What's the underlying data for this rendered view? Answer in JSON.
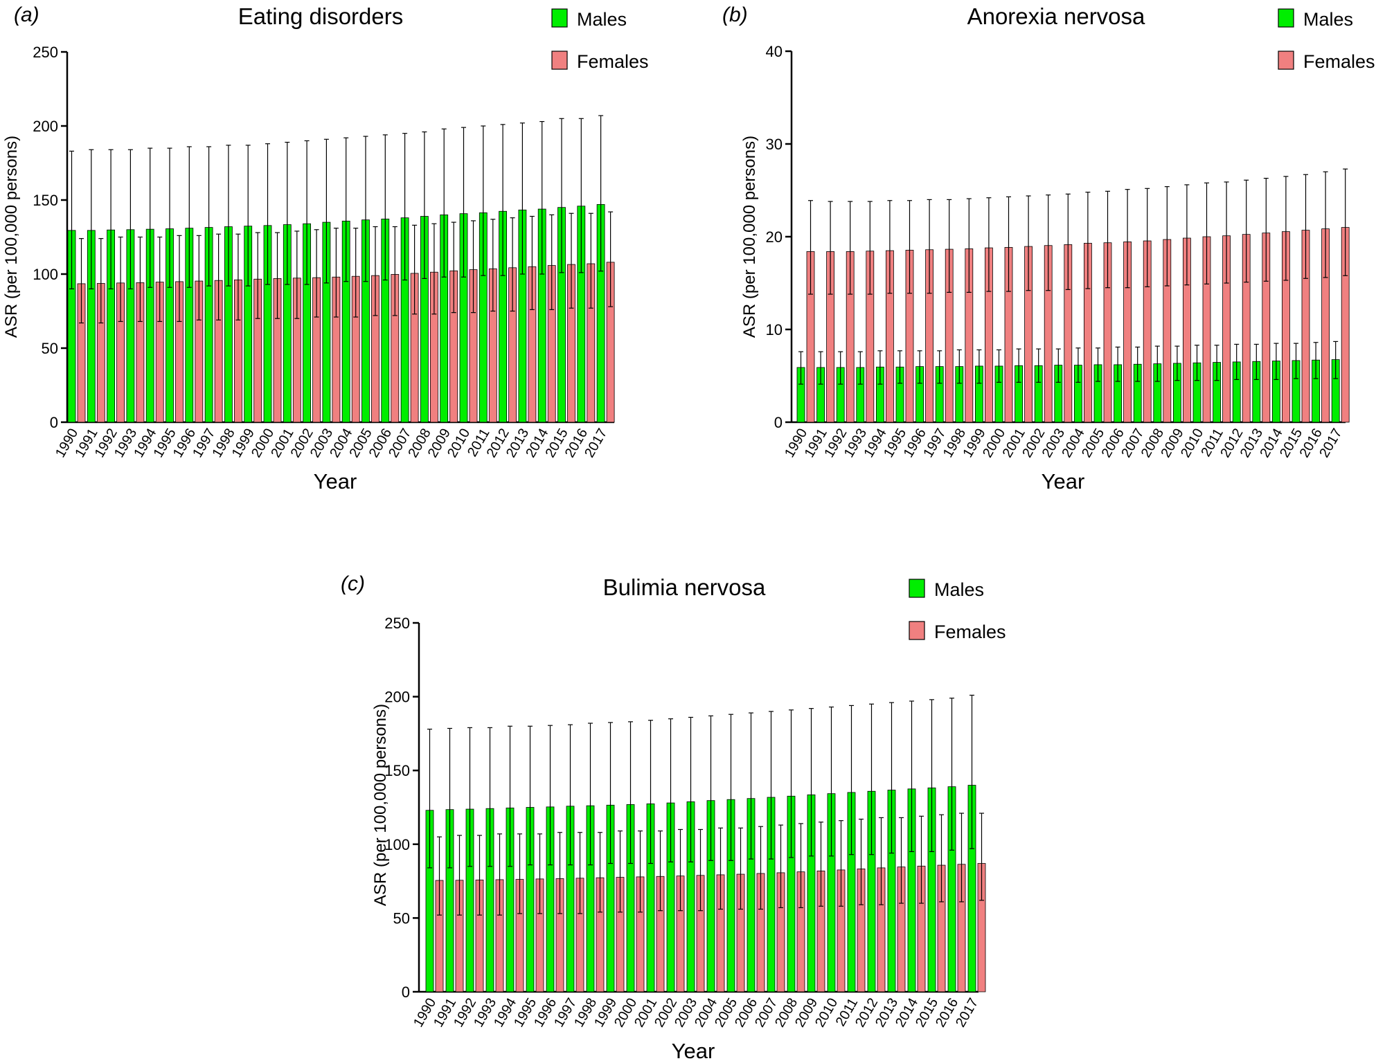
{
  "figure": {
    "panels": [
      {
        "label": "(a)",
        "title": "Eating disorders"
      },
      {
        "label": "(b)",
        "title": "Anorexia nervosa"
      },
      {
        "label": "(c)",
        "title": "Bulimia nervosa"
      }
    ]
  },
  "colors": {
    "males": "#00ee00",
    "females": "#f08080",
    "axis": "#000000"
  },
  "chart_data": [
    {
      "type": "bar",
      "title": "Eating disorders",
      "panel_label": "(a)",
      "xlabel": "Year",
      "ylabel": "ASR (per 100,000  persons)",
      "ylim": [
        0,
        250
      ],
      "yticks": [
        0,
        50,
        100,
        150,
        200,
        250
      ],
      "grid": false,
      "legend_placement": "top-right",
      "categories": [
        "1990",
        "1991",
        "1992",
        "1993",
        "1994",
        "1995",
        "1996",
        "1997",
        "1998",
        "1999",
        "2000",
        "2001",
        "2002",
        "2003",
        "2004",
        "2005",
        "2006",
        "2007",
        "2008",
        "2009",
        "2010",
        "2011",
        "2012",
        "2013",
        "2014",
        "2015",
        "2016",
        "2017"
      ],
      "series": [
        {
          "name": "Males",
          "values": [
            129.5,
            129.5,
            129.8,
            130.0,
            130.3,
            130.6,
            131.0,
            131.5,
            132.0,
            132.4,
            132.8,
            133.4,
            134.0,
            135.0,
            135.8,
            136.6,
            137.2,
            138.0,
            139.0,
            140.0,
            140.8,
            141.4,
            142.4,
            143.3,
            143.9,
            145.0,
            145.9,
            147.0
          ],
          "err_low": [
            90,
            90,
            90,
            90,
            91,
            91,
            91,
            92,
            92,
            92,
            93,
            93,
            93,
            94,
            95,
            95,
            96,
            96,
            97,
            98,
            98,
            99,
            99,
            100,
            100,
            101,
            101,
            102
          ],
          "err_high": [
            183,
            184,
            184,
            184,
            185,
            185,
            186,
            186,
            187,
            187,
            188,
            189,
            190,
            191,
            192,
            193,
            194,
            195,
            196,
            198,
            199,
            200,
            201,
            202,
            203,
            205,
            205,
            207
          ]
        },
        {
          "name": "Females",
          "values": [
            93.5,
            93.7,
            94.0,
            94.2,
            94.6,
            94.9,
            95.3,
            95.7,
            96.1,
            96.6,
            97.0,
            97.3,
            97.6,
            98.0,
            98.5,
            99.0,
            99.8,
            100.5,
            101.3,
            102.2,
            103.0,
            103.6,
            104.3,
            105.0,
            105.8,
            106.5,
            107.0,
            108.0
          ],
          "err_low": [
            67,
            67,
            68,
            68,
            68,
            68,
            69,
            69,
            69,
            70,
            70,
            70,
            71,
            71,
            71,
            72,
            72,
            73,
            73,
            74,
            74,
            75,
            75,
            76,
            76,
            77,
            77,
            78
          ],
          "err_high": [
            124,
            124,
            125,
            125,
            125,
            126,
            126,
            127,
            127,
            128,
            128,
            129,
            130,
            131,
            131,
            132,
            132,
            133,
            134,
            135,
            136,
            137,
            138,
            139,
            140,
            141,
            141,
            142
          ]
        }
      ]
    },
    {
      "type": "bar",
      "title": "Anorexia nervosa",
      "panel_label": "(b)",
      "xlabel": "Year",
      "ylabel": "ASR (per 100,000  persons)",
      "ylim": [
        0,
        40
      ],
      "yticks": [
        0,
        10,
        20,
        30,
        40
      ],
      "grid": false,
      "legend_placement": "top-right",
      "categories": [
        "1990",
        "1991",
        "1992",
        "1993",
        "1994",
        "1995",
        "1996",
        "1997",
        "1998",
        "1999",
        "2000",
        "2001",
        "2002",
        "2003",
        "2004",
        "2005",
        "2006",
        "2007",
        "2008",
        "2009",
        "2010",
        "2011",
        "2012",
        "2013",
        "2014",
        "2015",
        "2016",
        "2017"
      ],
      "series": [
        {
          "name": "Males",
          "values": [
            5.9,
            5.9,
            5.9,
            5.9,
            5.95,
            5.95,
            6.0,
            6.0,
            6.0,
            6.05,
            6.05,
            6.1,
            6.1,
            6.15,
            6.15,
            6.2,
            6.2,
            6.25,
            6.3,
            6.35,
            6.4,
            6.45,
            6.5,
            6.55,
            6.6,
            6.65,
            6.7,
            6.75
          ],
          "err_low": [
            4.1,
            4.1,
            4.1,
            4.1,
            4.1,
            4.2,
            4.2,
            4.2,
            4.2,
            4.2,
            4.3,
            4.3,
            4.3,
            4.3,
            4.3,
            4.4,
            4.4,
            4.4,
            4.4,
            4.5,
            4.5,
            4.5,
            4.6,
            4.6,
            4.6,
            4.7,
            4.7,
            4.7
          ],
          "err_high": [
            7.6,
            7.6,
            7.6,
            7.6,
            7.7,
            7.7,
            7.7,
            7.7,
            7.8,
            7.8,
            7.8,
            7.9,
            7.9,
            7.9,
            8.0,
            8.0,
            8.1,
            8.1,
            8.2,
            8.2,
            8.3,
            8.3,
            8.4,
            8.4,
            8.5,
            8.5,
            8.6,
            8.7
          ]
        },
        {
          "name": "Females",
          "values": [
            18.4,
            18.4,
            18.4,
            18.45,
            18.5,
            18.55,
            18.6,
            18.65,
            18.7,
            18.8,
            18.85,
            18.95,
            19.05,
            19.15,
            19.3,
            19.35,
            19.45,
            19.55,
            19.7,
            19.85,
            20.0,
            20.1,
            20.25,
            20.4,
            20.55,
            20.7,
            20.85,
            21.0
          ],
          "err_low": [
            13.8,
            13.8,
            13.8,
            13.8,
            13.9,
            13.9,
            13.9,
            14.0,
            14.0,
            14.1,
            14.1,
            14.2,
            14.2,
            14.3,
            14.4,
            14.5,
            14.5,
            14.6,
            14.7,
            14.8,
            14.9,
            15.0,
            15.1,
            15.2,
            15.3,
            15.5,
            15.6,
            15.8
          ],
          "err_high": [
            23.9,
            23.8,
            23.8,
            23.8,
            23.9,
            23.9,
            24.0,
            24.0,
            24.1,
            24.2,
            24.3,
            24.4,
            24.5,
            24.6,
            24.8,
            24.9,
            25.1,
            25.2,
            25.4,
            25.6,
            25.8,
            25.9,
            26.1,
            26.3,
            26.5,
            26.7,
            27.0,
            27.3
          ]
        }
      ]
    },
    {
      "type": "bar",
      "title": "Bulimia nervosa",
      "panel_label": "(c)",
      "xlabel": "Year",
      "ylabel": "ASR (per 100,000  persons)",
      "ylim": [
        0,
        250
      ],
      "yticks": [
        0,
        50,
        100,
        150,
        200,
        250
      ],
      "grid": false,
      "legend_placement": "top-right",
      "categories": [
        "1990",
        "1991",
        "1992",
        "1993",
        "1994",
        "1995",
        "1996",
        "1997",
        "1998",
        "1999",
        "2000",
        "2001",
        "2002",
        "2003",
        "2004",
        "2005",
        "2006",
        "2007",
        "2008",
        "2009",
        "2010",
        "2011",
        "2012",
        "2013",
        "2014",
        "2015",
        "2016",
        "2017"
      ],
      "series": [
        {
          "name": "Males",
          "values": [
            123.0,
            123.5,
            123.8,
            124.2,
            124.6,
            125.0,
            125.3,
            125.8,
            126.1,
            126.5,
            126.9,
            127.4,
            128.0,
            128.8,
            129.6,
            130.3,
            131.0,
            131.8,
            132.6,
            133.5,
            134.3,
            135.1,
            135.9,
            136.7,
            137.5,
            138.2,
            139.0,
            140.0
          ],
          "err_low": [
            84,
            84,
            85,
            85,
            85,
            86,
            86,
            86,
            86,
            87,
            87,
            87,
            88,
            88,
            89,
            89,
            90,
            90,
            91,
            92,
            92,
            93,
            93,
            94,
            95,
            95,
            96,
            97
          ],
          "err_high": [
            178,
            178.5,
            179,
            179,
            180,
            180,
            180.5,
            181,
            182,
            182.5,
            183,
            184,
            185,
            186,
            187,
            188,
            189,
            190,
            191,
            192,
            193,
            194,
            195,
            196,
            197,
            198,
            199,
            201
          ]
        },
        {
          "name": "Females",
          "values": [
            75.5,
            75.6,
            75.8,
            76.0,
            76.2,
            76.5,
            76.7,
            77.0,
            77.3,
            77.6,
            77.9,
            78.2,
            78.5,
            78.9,
            79.3,
            79.7,
            80.2,
            80.7,
            81.3,
            81.9,
            82.6,
            83.3,
            84.0,
            84.6,
            85.2,
            85.8,
            86.4,
            87.0
          ],
          "err_low": [
            52,
            52,
            52,
            52,
            53,
            53,
            53,
            53,
            54,
            54,
            54,
            55,
            55,
            55,
            56,
            56,
            56,
            57,
            57,
            58,
            58,
            59,
            59,
            60,
            60,
            61,
            61,
            62
          ],
          "err_high": [
            105,
            106,
            106,
            107,
            107,
            107,
            108,
            108,
            108,
            109,
            109,
            109,
            110,
            110,
            111,
            111,
            112,
            113,
            114,
            115,
            116,
            117,
            118,
            118,
            119,
            120,
            121,
            121
          ]
        }
      ]
    }
  ]
}
